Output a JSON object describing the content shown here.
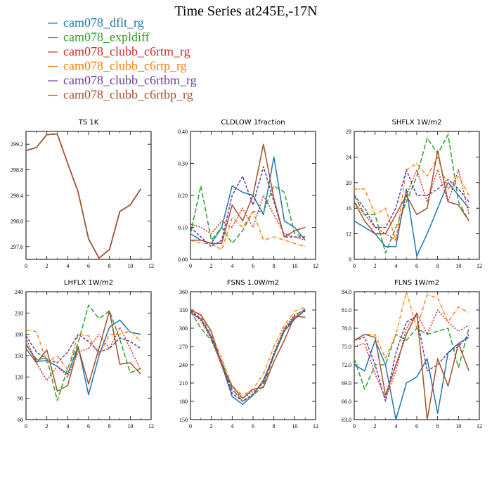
{
  "title": "Time Series at245E,-17N",
  "legend": [
    {
      "name": "cam078_dflt_rg",
      "color": "#1f77b4",
      "dash": ""
    },
    {
      "name": "cam078_expldiff",
      "color": "#2ca02c",
      "dash": "7,3"
    },
    {
      "name": "cam078_clubb_c6rtm_rg",
      "color": "#d62728",
      "dash": "2,2"
    },
    {
      "name": "cam078_clubb_c6rtp_rg",
      "color": "#ff7f0e",
      "dash": "5,2,1,2"
    },
    {
      "name": "cam078_clubb_c6rtbm_rg",
      "color": "#6a3d9a",
      "dash": "4,2"
    },
    {
      "name": "cam078_clubb_c6rtbp_rg",
      "color": "#a0522d",
      "dash": ""
    }
  ],
  "chart_data": [
    {
      "type": "line",
      "title": "TS   1K",
      "x": [
        0,
        1,
        2,
        3,
        4,
        5,
        6,
        7,
        8,
        9,
        10,
        11
      ],
      "xlim": [
        0,
        12
      ],
      "xticks": [
        0,
        2,
        4,
        6,
        8,
        10,
        12
      ],
      "ylim": [
        297.4,
        299.4
      ],
      "yticks": [
        297.6,
        298.0,
        298.4,
        298.8,
        299.2
      ],
      "yfmt": 1,
      "series": [
        {
          "name": "cam078_dflt_rg",
          "values": [
            299.1,
            299.15,
            299.35,
            299.36,
            298.9,
            298.45,
            297.72,
            297.42,
            297.55,
            298.15,
            298.25,
            298.5
          ]
        },
        {
          "name": "cam078_expldiff",
          "values": [
            299.1,
            299.15,
            299.35,
            299.36,
            298.9,
            298.45,
            297.72,
            297.42,
            297.55,
            298.15,
            298.25,
            298.5
          ]
        },
        {
          "name": "cam078_clubb_c6rtm_rg",
          "values": [
            299.1,
            299.15,
            299.35,
            299.36,
            298.9,
            298.45,
            297.72,
            297.42,
            297.55,
            298.15,
            298.25,
            298.5
          ]
        },
        {
          "name": "cam078_clubb_c6rtp_rg",
          "values": [
            299.1,
            299.15,
            299.35,
            299.36,
            298.9,
            298.45,
            297.72,
            297.42,
            297.55,
            298.15,
            298.25,
            298.5
          ]
        },
        {
          "name": "cam078_clubb_c6rtbm_rg",
          "values": [
            299.1,
            299.15,
            299.35,
            299.36,
            298.9,
            298.45,
            297.72,
            297.42,
            297.55,
            298.15,
            298.25,
            298.5
          ]
        },
        {
          "name": "cam078_clubb_c6rtbp_rg",
          "values": [
            299.1,
            299.15,
            299.35,
            299.36,
            298.9,
            298.45,
            297.72,
            297.42,
            297.55,
            298.15,
            298.25,
            298.5
          ]
        }
      ]
    },
    {
      "type": "line",
      "title": "CLDLOW   1fraction",
      "x": [
        0,
        1,
        2,
        3,
        4,
        5,
        6,
        7,
        8,
        9,
        10,
        11
      ],
      "xlim": [
        0,
        12
      ],
      "xticks": [
        0,
        2,
        4,
        6,
        8,
        10,
        12
      ],
      "ylim": [
        0,
        0.4
      ],
      "yticks": [
        0,
        0.1,
        0.2,
        0.3,
        0.4
      ],
      "yfmt": 2,
      "series": [
        {
          "name": "cam078_dflt_rg",
          "values": [
            0.08,
            0.06,
            0.05,
            0.1,
            0.23,
            0.21,
            0.2,
            0.14,
            0.32,
            0.12,
            0.1,
            0.06
          ]
        },
        {
          "name": "cam078_expldiff",
          "values": [
            0.08,
            0.23,
            0.06,
            0.1,
            0.05,
            0.09,
            0.15,
            0.15,
            0.23,
            0.21,
            0.08,
            0.07
          ]
        },
        {
          "name": "cam078_clubb_c6rtm_rg",
          "values": [
            0.11,
            0.1,
            0.08,
            0.12,
            0.1,
            0.16,
            0.1,
            0.2,
            0.14,
            0.08,
            0.07,
            0.06
          ]
        },
        {
          "name": "cam078_clubb_c6rtp_rg",
          "values": [
            0.06,
            0.05,
            0.05,
            0.03,
            0.13,
            0.1,
            0.15,
            0.06,
            0.07,
            0.06,
            0.05,
            0.04
          ]
        },
        {
          "name": "cam078_clubb_c6rtbm_rg",
          "values": [
            0.1,
            0.07,
            0.04,
            0.06,
            0.2,
            0.26,
            0.17,
            0.29,
            0.18,
            0.07,
            0.07,
            0.07
          ]
        },
        {
          "name": "cam078_clubb_c6rtbp_rg",
          "values": [
            0.06,
            0.06,
            0.05,
            0.05,
            0.17,
            0.12,
            0.2,
            0.36,
            0.19,
            0.07,
            0.09,
            0.1
          ]
        }
      ]
    },
    {
      "type": "line",
      "title": "SHFLX   1W/m2",
      "x": [
        0,
        1,
        2,
        3,
        4,
        5,
        6,
        7,
        8,
        9,
        10,
        11
      ],
      "xlim": [
        0,
        12
      ],
      "xticks": [
        0,
        2,
        4,
        6,
        8,
        10,
        12
      ],
      "ylim": [
        8,
        28
      ],
      "yticks": [
        8,
        12,
        16,
        20,
        24,
        28
      ],
      "yfmt": 0,
      "series": [
        {
          "name": "cam078_dflt_rg",
          "values": [
            14,
            13,
            12,
            10,
            10,
            19,
            8.5,
            12,
            16,
            20,
            18,
            16
          ]
        },
        {
          "name": "cam078_expldiff",
          "values": [
            18,
            15,
            15,
            9,
            13,
            17,
            21,
            27,
            24.5,
            27.5,
            17,
            14
          ]
        },
        {
          "name": "cam078_clubb_c6rtm_rg",
          "values": [
            17,
            15,
            13,
            12,
            11,
            18,
            22,
            17,
            22,
            17,
            22,
            15
          ]
        },
        {
          "name": "cam078_clubb_c6rtp_rg",
          "values": [
            19,
            19,
            15,
            16,
            11,
            22,
            23,
            21,
            24,
            19,
            21,
            18
          ]
        },
        {
          "name": "cam078_clubb_c6rtbm_rg",
          "values": [
            18,
            16,
            13,
            13,
            16,
            22,
            18,
            18,
            19,
            20.5,
            19,
            17
          ]
        },
        {
          "name": "cam078_clubb_c6rtbp_rg",
          "values": [
            17,
            14,
            12,
            12,
            15,
            18,
            15,
            16,
            25,
            17,
            16.5,
            14
          ]
        }
      ]
    },
    {
      "type": "line",
      "title": "LHFLX   1W/m2",
      "x": [
        0,
        1,
        2,
        3,
        4,
        5,
        6,
        7,
        8,
        9,
        10,
        11
      ],
      "xlim": [
        0,
        12
      ],
      "xticks": [
        0,
        2,
        4,
        6,
        8,
        10,
        12
      ],
      "ylim": [
        60,
        240
      ],
      "yticks": [
        60,
        90,
        120,
        150,
        180,
        210,
        240
      ],
      "yfmt": 0,
      "series": [
        {
          "name": "cam078_dflt_rg",
          "values": [
            167,
            142,
            143,
            135,
            124,
            163,
            95,
            150,
            190,
            200,
            183,
            180
          ]
        },
        {
          "name": "cam078_expldiff",
          "values": [
            165,
            145,
            146,
            87,
            132,
            168,
            221,
            202,
            213,
            173,
            126,
            132
          ]
        },
        {
          "name": "cam078_clubb_c6rtm_rg",
          "values": [
            175,
            140,
            115,
            135,
            120,
            155,
            160,
            180,
            160,
            190,
            160,
            130
          ]
        },
        {
          "name": "cam078_clubb_c6rtp_rg",
          "values": [
            186,
            184,
            140,
            150,
            130,
            180,
            178,
            150,
            180,
            180,
            185,
            170
          ]
        },
        {
          "name": "cam078_clubb_c6rtbm_rg",
          "values": [
            178,
            155,
            145,
            140,
            155,
            180,
            170,
            155,
            160,
            175,
            170,
            160
          ]
        },
        {
          "name": "cam078_clubb_c6rtbp_rg",
          "values": [
            160,
            140,
            158,
            100,
            108,
            162,
            110,
            160,
            213,
            138,
            140,
            124
          ]
        }
      ]
    },
    {
      "type": "line",
      "title": "FSNS   1.0W/m2",
      "x": [
        0,
        1,
        2,
        3,
        4,
        5,
        6,
        7,
        8,
        9,
        10,
        11
      ],
      "xlim": [
        0,
        12
      ],
      "xticks": [
        0,
        2,
        4,
        6,
        8,
        10,
        12
      ],
      "ylim": [
        150,
        360
      ],
      "yticks": [
        150,
        180,
        210,
        240,
        270,
        300,
        330,
        360
      ],
      "yfmt": 0,
      "series": [
        {
          "name": "cam078_dflt_rg",
          "values": [
            325,
            315,
            285,
            240,
            188,
            175,
            190,
            215,
            255,
            295,
            315,
            330
          ]
        },
        {
          "name": "cam078_expldiff",
          "values": [
            328,
            300,
            280,
            245,
            200,
            180,
            190,
            205,
            255,
            295,
            320,
            332
          ]
        },
        {
          "name": "cam078_clubb_c6rtm_rg",
          "values": [
            330,
            312,
            282,
            238,
            198,
            185,
            196,
            210,
            260,
            300,
            322,
            330
          ]
        },
        {
          "name": "cam078_clubb_c6rtp_rg",
          "values": [
            332,
            320,
            290,
            250,
            205,
            190,
            200,
            225,
            270,
            305,
            328,
            335
          ]
        },
        {
          "name": "cam078_clubb_c6rtbm_rg",
          "values": [
            329,
            316,
            286,
            243,
            193,
            180,
            192,
            212,
            257,
            298,
            318,
            328
          ]
        },
        {
          "name": "cam078_clubb_c6rtbp_rg",
          "values": [
            330,
            322,
            295,
            240,
            205,
            185,
            200,
            203,
            245,
            280,
            320,
            318
          ]
        }
      ]
    },
    {
      "type": "line",
      "title": "FLNS   1W/m2",
      "x": [
        0,
        1,
        2,
        3,
        4,
        5,
        6,
        7,
        8,
        9,
        10,
        11
      ],
      "xlim": [
        0,
        12
      ],
      "xticks": [
        0,
        2,
        4,
        6,
        8,
        10,
        12
      ],
      "ylim": [
        63,
        84
      ],
      "yticks": [
        63,
        66,
        69,
        72,
        75,
        78,
        81,
        84
      ],
      "yfmt": 1,
      "series": [
        {
          "name": "cam078_dflt_rg",
          "values": [
            72,
            71,
            76,
            72,
            63,
            69,
            70,
            73,
            64,
            74,
            75.5,
            76.5
          ]
        },
        {
          "name": "cam078_expldiff",
          "values": [
            73,
            68,
            72,
            72,
            77,
            76,
            78,
            77,
            77.5,
            78,
            71.5,
            78
          ]
        },
        {
          "name": "cam078_clubb_c6rtm_rg",
          "values": [
            75,
            75.5,
            70.5,
            66.5,
            71,
            78,
            80.5,
            77,
            81,
            79,
            77.5,
            78.5
          ]
        },
        {
          "name": "cam078_clubb_c6rtp_rg",
          "values": [
            76,
            77,
            77,
            73,
            77,
            84,
            78,
            83.5,
            83,
            79,
            81.5,
            80.5
          ]
        },
        {
          "name": "cam078_clubb_c6rtbm_rg",
          "values": [
            76,
            76.5,
            72,
            66,
            74,
            79,
            80,
            71,
            72,
            74,
            75,
            77
          ]
        },
        {
          "name": "cam078_clubb_c6rtbp_rg",
          "values": [
            76,
            77,
            76.5,
            67,
            72,
            77,
            80.5,
            63,
            73,
            68.5,
            75.5,
            71
          ]
        }
      ]
    }
  ]
}
